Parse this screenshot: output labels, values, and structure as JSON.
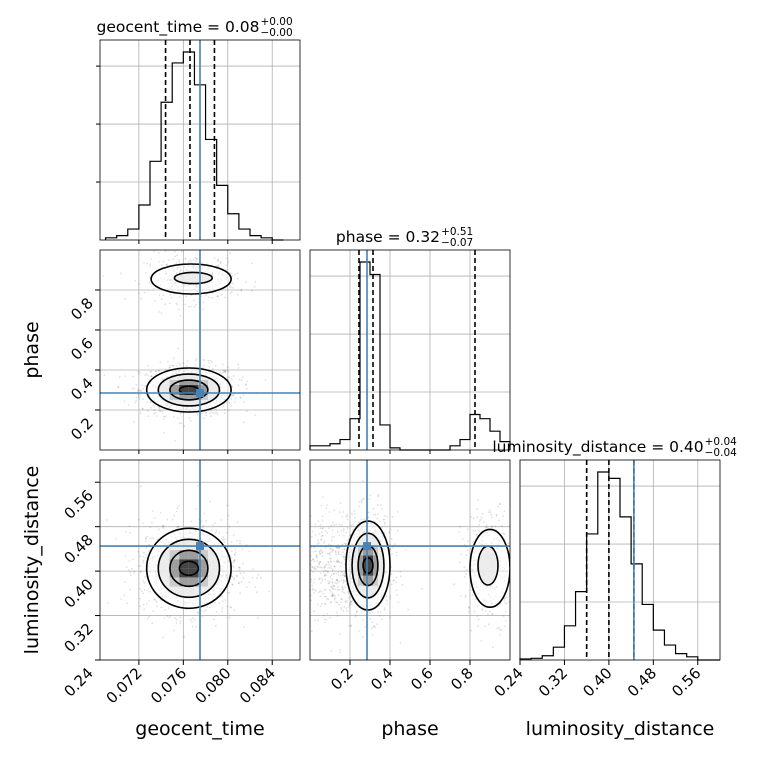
{
  "chart_data": {
    "type": "corner",
    "parameters": [
      "geocent_time",
      "phase",
      "luminosity_distance"
    ],
    "truth": {
      "geocent_time": 0.0775,
      "phase": 0.285,
      "luminosity_distance": 0.445
    },
    "titles": [
      {
        "param": "geocent_time",
        "text": "geocent_time = 0.08",
        "sup": "+0.00",
        "sub": "−0.00"
      },
      {
        "param": "phase",
        "text": "phase = 0.32",
        "sup": "+0.51",
        "sub": "−0.07"
      },
      {
        "param": "luminosity_distance",
        "text": "luminosity_distance = 0.40",
        "sup": "+0.04",
        "sub": "−0.04"
      }
    ],
    "axis_labels": {
      "geocent_time": "geocent_time",
      "phase": "phase",
      "luminosity_distance": "luminosity_distance"
    },
    "ticks": {
      "geocent_time": [
        "0.072",
        "0.076",
        "0.080",
        "0.084"
      ],
      "phase": [
        "0.2",
        "0.4",
        "0.6",
        "0.8"
      ],
      "luminosity_distance": [
        "0.24",
        "0.32",
        "0.40",
        "0.48",
        "0.56"
      ]
    },
    "ranges": {
      "geocent_time": [
        0.0685,
        0.0865
      ],
      "phase": [
        0.0,
        1.0
      ],
      "luminosity_distance": [
        0.24,
        0.6
      ]
    },
    "histograms": {
      "geocent_time": {
        "bins": [
          0.069,
          0.07,
          0.071,
          0.072,
          0.073,
          0.074,
          0.075,
          0.076,
          0.077,
          0.078,
          0.079,
          0.08,
          0.081,
          0.082,
          0.083,
          0.084
        ],
        "counts": [
          1,
          2,
          5,
          16,
          36,
          63,
          81,
          86,
          71,
          46,
          25,
          12,
          5,
          2,
          1,
          0
        ],
        "quantiles": [
          0.0744,
          0.0766,
          0.0788
        ]
      },
      "phase": {
        "bins": [
          0.0,
          0.05,
          0.1,
          0.15,
          0.2,
          0.25,
          0.3,
          0.35,
          0.4,
          0.45,
          0.5,
          0.55,
          0.6,
          0.65,
          0.7,
          0.75,
          0.8,
          0.85,
          0.9,
          0.95
        ],
        "counts": [
          2,
          2,
          3,
          5,
          15,
          90,
          84,
          12,
          1,
          0,
          0,
          0,
          0,
          0,
          2,
          5,
          17,
          15,
          9,
          4
        ],
        "quantiles": [
          0.245,
          0.315,
          0.825
        ]
      },
      "luminosity_distance": {
        "bins": [
          0.24,
          0.26,
          0.28,
          0.3,
          0.32,
          0.34,
          0.36,
          0.38,
          0.4,
          0.42,
          0.44,
          0.46,
          0.48,
          0.5,
          0.52,
          0.54,
          0.56,
          0.58
        ],
        "counts": [
          0.5,
          0.8,
          2,
          6,
          16,
          32,
          59,
          88,
          85,
          67,
          45,
          26,
          14,
          7,
          3,
          1.5,
          0,
          0
        ],
        "quantiles": [
          0.36,
          0.4,
          0.445
        ]
      }
    },
    "grid": true
  }
}
